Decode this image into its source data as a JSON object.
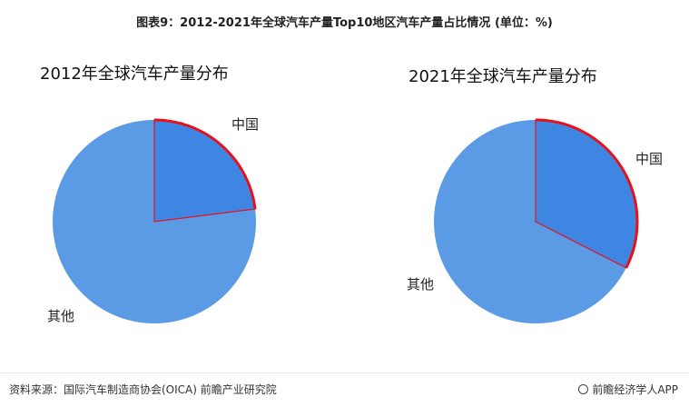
{
  "title": "图表9：2012-2021年全球汽车产量Top10地区汽车产量占比情况 (单位：%)",
  "footer": {
    "source": "资料来源：国际汽车制造商协会(OICA) 前瞻产业研究院",
    "brand": "前瞻经济学人APP",
    "brand_icon": "qianzhan-logo-icon"
  },
  "colors": {
    "other": "#5b9be6",
    "china": "#3f86e3",
    "highlight": "#e8101a"
  },
  "chart_data": [
    {
      "type": "pie",
      "title": "2012年全球汽车产量分布",
      "labels": [
        "中国",
        "其他"
      ],
      "values": [
        23.0,
        77.0
      ]
    },
    {
      "type": "pie",
      "title": "2021年全球汽车产量分布",
      "labels": [
        "中国",
        "其他"
      ],
      "values": [
        32.5,
        67.5
      ]
    }
  ]
}
